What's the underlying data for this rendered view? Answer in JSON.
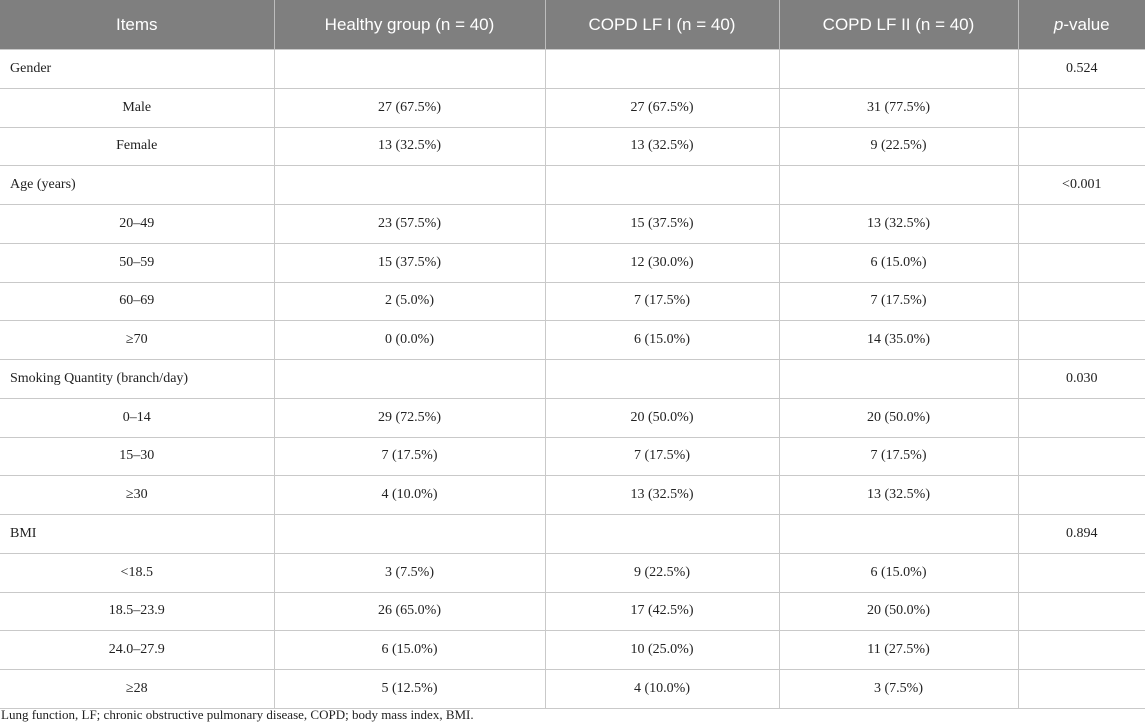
{
  "table": {
    "headers": [
      "Items",
      "Healthy group (n = 40)",
      "COPD LF I (n = 40)",
      "COPD LF II (n = 40)"
    ],
    "pvalue_header": {
      "italic": "p",
      "rest": "-value"
    },
    "rows": [
      {
        "type": "category",
        "label": "Gender",
        "p": "0.524"
      },
      {
        "type": "item",
        "label": "Male",
        "healthy": "27 (67.5%)",
        "lf1": "27 (67.5%)",
        "lf2": "31 (77.5%)"
      },
      {
        "type": "item",
        "label": "Female",
        "healthy": "13 (32.5%)",
        "lf1": "13 (32.5%)",
        "lf2": "9 (22.5%)"
      },
      {
        "type": "category",
        "label": "Age (years)",
        "p": "<0.001"
      },
      {
        "type": "item",
        "label": "20–49",
        "healthy": "23 (57.5%)",
        "lf1": "15 (37.5%)",
        "lf2": "13 (32.5%)"
      },
      {
        "type": "item",
        "label": "50–59",
        "healthy": "15 (37.5%)",
        "lf1": "12 (30.0%)",
        "lf2": "6 (15.0%)"
      },
      {
        "type": "item",
        "label": "60–69",
        "healthy": "2 (5.0%)",
        "lf1": "7 (17.5%)",
        "lf2": "7 (17.5%)"
      },
      {
        "type": "item",
        "label": "≥70",
        "healthy": "0 (0.0%)",
        "lf1": "6 (15.0%)",
        "lf2": "14 (35.0%)"
      },
      {
        "type": "category",
        "label": "Smoking Quantity (branch/day)",
        "p": "0.030"
      },
      {
        "type": "item",
        "label": "0–14",
        "healthy": "29 (72.5%)",
        "lf1": "20 (50.0%)",
        "lf2": "20 (50.0%)"
      },
      {
        "type": "item",
        "label": "15–30",
        "healthy": "7 (17.5%)",
        "lf1": "7 (17.5%)",
        "lf2": "7 (17.5%)"
      },
      {
        "type": "item",
        "label": "≥30",
        "healthy": "4 (10.0%)",
        "lf1": "13 (32.5%)",
        "lf2": "13 (32.5%)"
      },
      {
        "type": "category",
        "label": "BMI",
        "p": "0.894"
      },
      {
        "type": "item",
        "label": "<18.5",
        "healthy": "3 (7.5%)",
        "lf1": "9 (22.5%)",
        "lf2": "6 (15.0%)"
      },
      {
        "type": "item",
        "label": "18.5–23.9",
        "healthy": "26 (65.0%)",
        "lf1": "17 (42.5%)",
        "lf2": "20 (50.0%)"
      },
      {
        "type": "item",
        "label": "24.0–27.9",
        "healthy": "6 (15.0%)",
        "lf1": "10 (25.0%)",
        "lf2": "11 (27.5%)"
      },
      {
        "type": "item",
        "label": "≥28",
        "healthy": "5 (12.5%)",
        "lf1": "4 (10.0%)",
        "lf2": "3 (7.5%)"
      }
    ]
  },
  "footnote": "Lung function, LF; chronic obstructive pulmonary disease, COPD; body mass index, BMI.",
  "colors": {
    "header_bg": "#7f7f7f",
    "header_text": "#ffffff",
    "grid": "#c9c9c9",
    "text": "#222222"
  }
}
